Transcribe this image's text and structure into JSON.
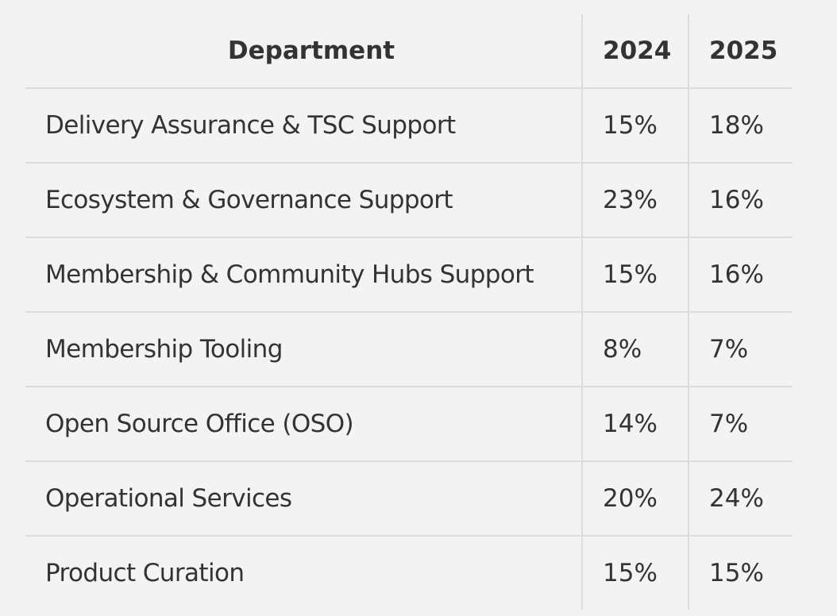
{
  "table": {
    "headers": {
      "department": "Department",
      "year_1": "2024",
      "year_2": "2025"
    },
    "rows": [
      {
        "department": "Delivery Assurance & TSC Support",
        "year_1": "15%",
        "year_2": "18%"
      },
      {
        "department": "Ecosystem & Governance Support",
        "year_1": "23%",
        "year_2": "16%"
      },
      {
        "department": "Membership & Community Hubs Support",
        "year_1": "15%",
        "year_2": "16%"
      },
      {
        "department": "Membership Tooling",
        "year_1": "8%",
        "year_2": "7%"
      },
      {
        "department": "Open Source Office (OSO)",
        "year_1": "14%",
        "year_2": "7%"
      },
      {
        "department": "Operational Services",
        "year_1": "20%",
        "year_2": "24%"
      },
      {
        "department": "Product Curation",
        "year_1": "15%",
        "year_2": "15%"
      }
    ]
  }
}
